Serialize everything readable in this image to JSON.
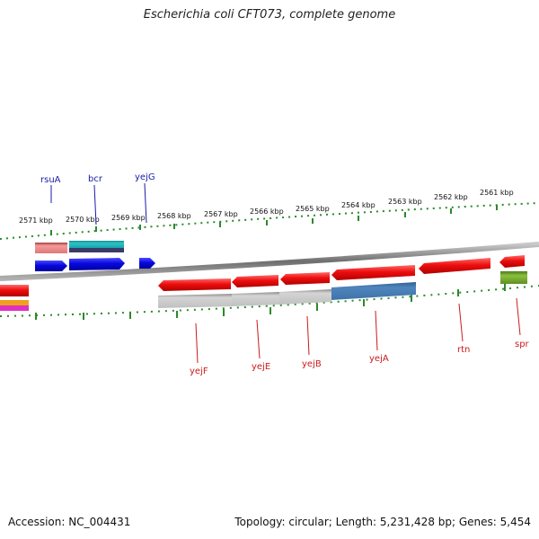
{
  "title": "Escherichia coli CFT073, complete genome",
  "footer": {
    "accession": "Accession: NC_004431",
    "summary": "Topology: circular; Length: 5,231,428 bp; Genes: 5,454"
  },
  "colors": {
    "backbone": "#8a8a8a",
    "tick": "#2a8a2a",
    "forward_label": "#1a1aa8",
    "reverse_label": "#cc1a1a",
    "forward_gene": "#0b0bdc",
    "reverse_gene": "#e81010"
  },
  "ticks": [
    "2571 kbp",
    "2570 kbp",
    "2569 kbp",
    "2568 kbp",
    "2567 kbp",
    "2566 kbp",
    "2565 kbp",
    "2564 kbp",
    "2563 kbp",
    "2562 kbp",
    "2561 kbp"
  ],
  "forward_genes": [
    "rsuA",
    "bcr",
    "yejG"
  ],
  "reverse_genes": [
    "yejF",
    "yejE",
    "yejB",
    "yejA",
    "rtn",
    "spr"
  ]
}
